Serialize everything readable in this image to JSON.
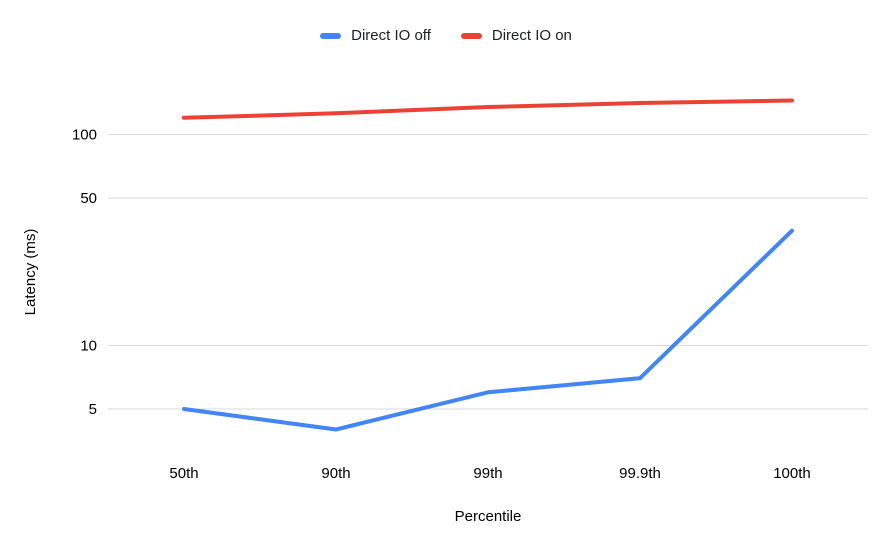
{
  "chart_data": {
    "type": "line",
    "title": "",
    "categories": [
      "50th",
      "90th",
      "99th",
      "99.9th",
      "100th"
    ],
    "series": [
      {
        "name": "Direct IO off",
        "color": "#4285F4",
        "values": [
          5,
          4,
          6,
          7,
          35
        ]
      },
      {
        "name": "Direct IO on",
        "color": "#EA4335",
        "values": [
          120,
          126,
          135,
          141,
          145
        ]
      }
    ],
    "xlabel": "Percentile",
    "ylabel": "Latency (ms)",
    "y_scale": "log",
    "y_ticks": [
      5,
      10,
      50,
      100
    ],
    "ylim": [
      3.5,
      180
    ],
    "grid": "horizontal",
    "legend_position": "top-center",
    "gridline_color": "#d9d9d9",
    "background_color": "#ffffff"
  }
}
